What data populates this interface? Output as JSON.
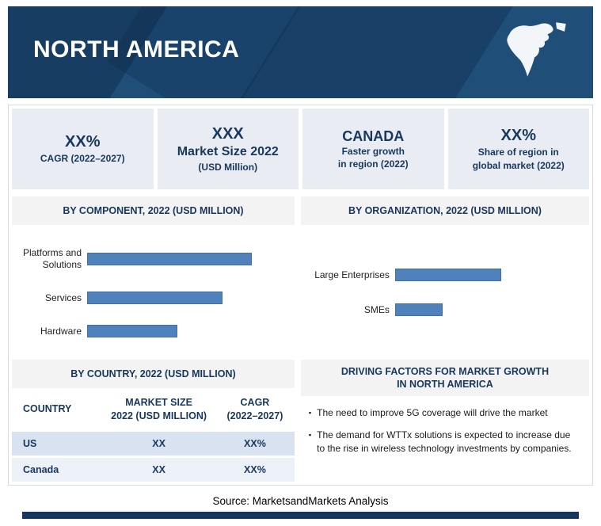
{
  "header": {
    "title": "NORTH AMERICA"
  },
  "colors": {
    "banner": "#1f4e79",
    "bar_fill": "#4f81bd",
    "bar_border": "#41719c",
    "navy_text": "#17375d",
    "stat_box_bg": "#e9edf3",
    "section_bar_bg": "#f3f3f3",
    "table_row_us_bg": "#d9e2f1",
    "table_row_canada_bg": "#ecf1f8"
  },
  "stat_boxes": [
    {
      "value": "XX%",
      "label_lines": [
        "CAGR (2022–2027)"
      ]
    },
    {
      "value": "XXX",
      "label_lines": [
        "Market Size 2022",
        "(USD Million)"
      ]
    },
    {
      "value": "CANADA",
      "label_lines": [
        "Faster growth",
        "in region (2022)"
      ]
    },
    {
      "value": "XX%",
      "label_lines": [
        "Share of region in",
        "global market (2022)"
      ]
    }
  ],
  "chart_data": [
    {
      "type": "bar",
      "orientation": "horizontal",
      "section_title": "BY COMPONENT, 2022 (USD MILLION)",
      "categories": [
        "Platforms and Solutions",
        "Services",
        "Hardware"
      ],
      "values": [
        84,
        69,
        46
      ],
      "xmax": 100,
      "value_unit": "percent of plot width (numeric axis values not shown in source)",
      "bar_color": "#4f81bd",
      "legend": "none",
      "grid": "off"
    },
    {
      "type": "bar",
      "orientation": "horizontal",
      "section_title": "BY ORGANIZATION, 2022 (USD MILLION)",
      "categories": [
        "Large Enterprises",
        "SMEs"
      ],
      "values": [
        58,
        26
      ],
      "xmax": 100,
      "value_unit": "percent of plot width (numeric axis values not shown in source)",
      "bar_color": "#4f81bd",
      "legend": "none",
      "grid": "off"
    }
  ],
  "country_table": {
    "section_title": "BY COUNTRY, 2022 (USD MILLION)",
    "col_headers": [
      {
        "line1": "COUNTRY",
        "line2": ""
      },
      {
        "line1": "MARKET SIZE",
        "line2": "2022 (USD MILLION)"
      },
      {
        "line1": "CAGR",
        "line2": "(2022–2027)"
      }
    ],
    "rows": [
      {
        "country": "US",
        "market_size": "XX",
        "cagr": "XX%"
      },
      {
        "country": "Canada",
        "market_size": "XX",
        "cagr": "XX%"
      }
    ]
  },
  "driving_factors": {
    "title_line1": "DRIVING FACTORS FOR MARKET GROWTH",
    "title_line2": "IN NORTH AMERICA",
    "bullets": [
      "The need to improve 5G coverage will drive the market",
      "The demand for WTTx solutions is expected to increase due to the rise in wireless technology investments by companies."
    ]
  },
  "footer": {
    "source": "Source: MarketsandMarkets Analysis"
  }
}
